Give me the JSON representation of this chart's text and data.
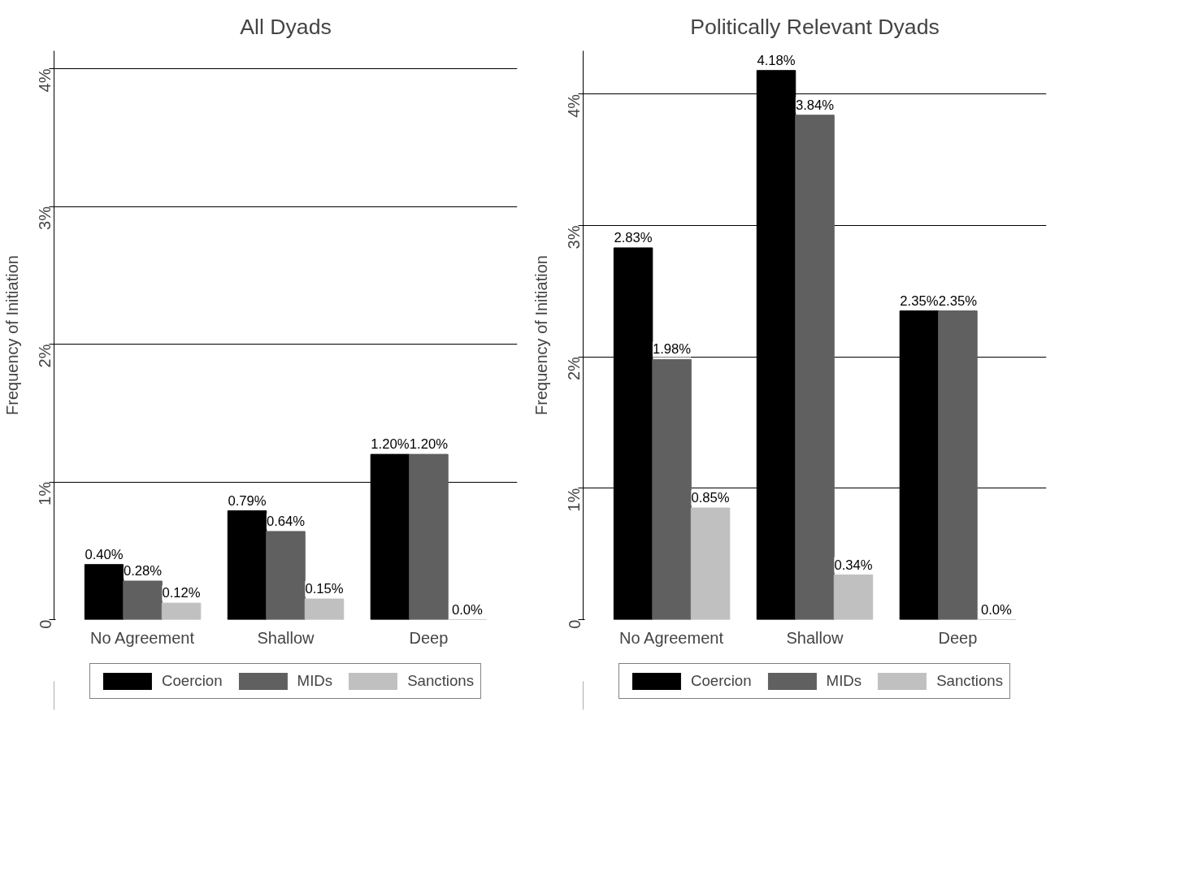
{
  "chart_data": [
    {
      "type": "bar",
      "title": "All Dyads",
      "ylabel": "Frequency of Initiation",
      "categories": [
        "No Agreement",
        "Shallow",
        "Deep"
      ],
      "series": [
        {
          "name": "Coercion",
          "color": "#000000",
          "values": [
            0.4,
            0.79,
            1.2
          ],
          "value_labels": [
            "0.40%",
            "0.79%",
            "1.20%"
          ]
        },
        {
          "name": "MIDs",
          "color": "#606060",
          "values": [
            0.28,
            0.64,
            1.2
          ],
          "value_labels": [
            "0.28%",
            "0.64%",
            "1.20%"
          ]
        },
        {
          "name": "Sanctions",
          "color": "#c0c0c0",
          "values": [
            0.12,
            0.15,
            0
          ],
          "value_labels": [
            "0.12%",
            "0.15%",
            "0.0%"
          ]
        }
      ],
      "ylim": [
        0,
        4.13
      ],
      "yticks": [
        {
          "value": 0,
          "label": "0"
        },
        {
          "value": 1,
          "label": "1%"
        },
        {
          "value": 2,
          "label": "2%"
        },
        {
          "value": 3,
          "label": "3%"
        },
        {
          "value": 4,
          "label": "4%"
        }
      ],
      "grid": "y",
      "legend": "bottom"
    },
    {
      "type": "bar",
      "title": "Politically Relevant Dyads",
      "ylabel": "Frequency of Initiation",
      "categories": [
        "No Agreement",
        "Shallow",
        "Deep"
      ],
      "series": [
        {
          "name": "Coercion",
          "color": "#000000",
          "values": [
            2.83,
            4.18,
            2.35
          ],
          "value_labels": [
            "2.83%",
            "4.18%",
            "2.35%"
          ]
        },
        {
          "name": "MIDs",
          "color": "#606060",
          "values": [
            1.98,
            3.84,
            2.35
          ],
          "value_labels": [
            "1.98%",
            "3.84%",
            "2.35%"
          ]
        },
        {
          "name": "Sanctions",
          "color": "#c0c0c0",
          "values": [
            0.85,
            0.34,
            0
          ],
          "value_labels": [
            "0.85%",
            "0.34%",
            "0.0%"
          ]
        }
      ],
      "ylim": [
        0,
        4.33
      ],
      "yticks": [
        {
          "value": 0,
          "label": "0"
        },
        {
          "value": 1,
          "label": "1%"
        },
        {
          "value": 2,
          "label": "2%"
        },
        {
          "value": 3,
          "label": "3%"
        },
        {
          "value": 4,
          "label": "4%"
        }
      ],
      "grid": "y",
      "legend": "bottom"
    }
  ]
}
